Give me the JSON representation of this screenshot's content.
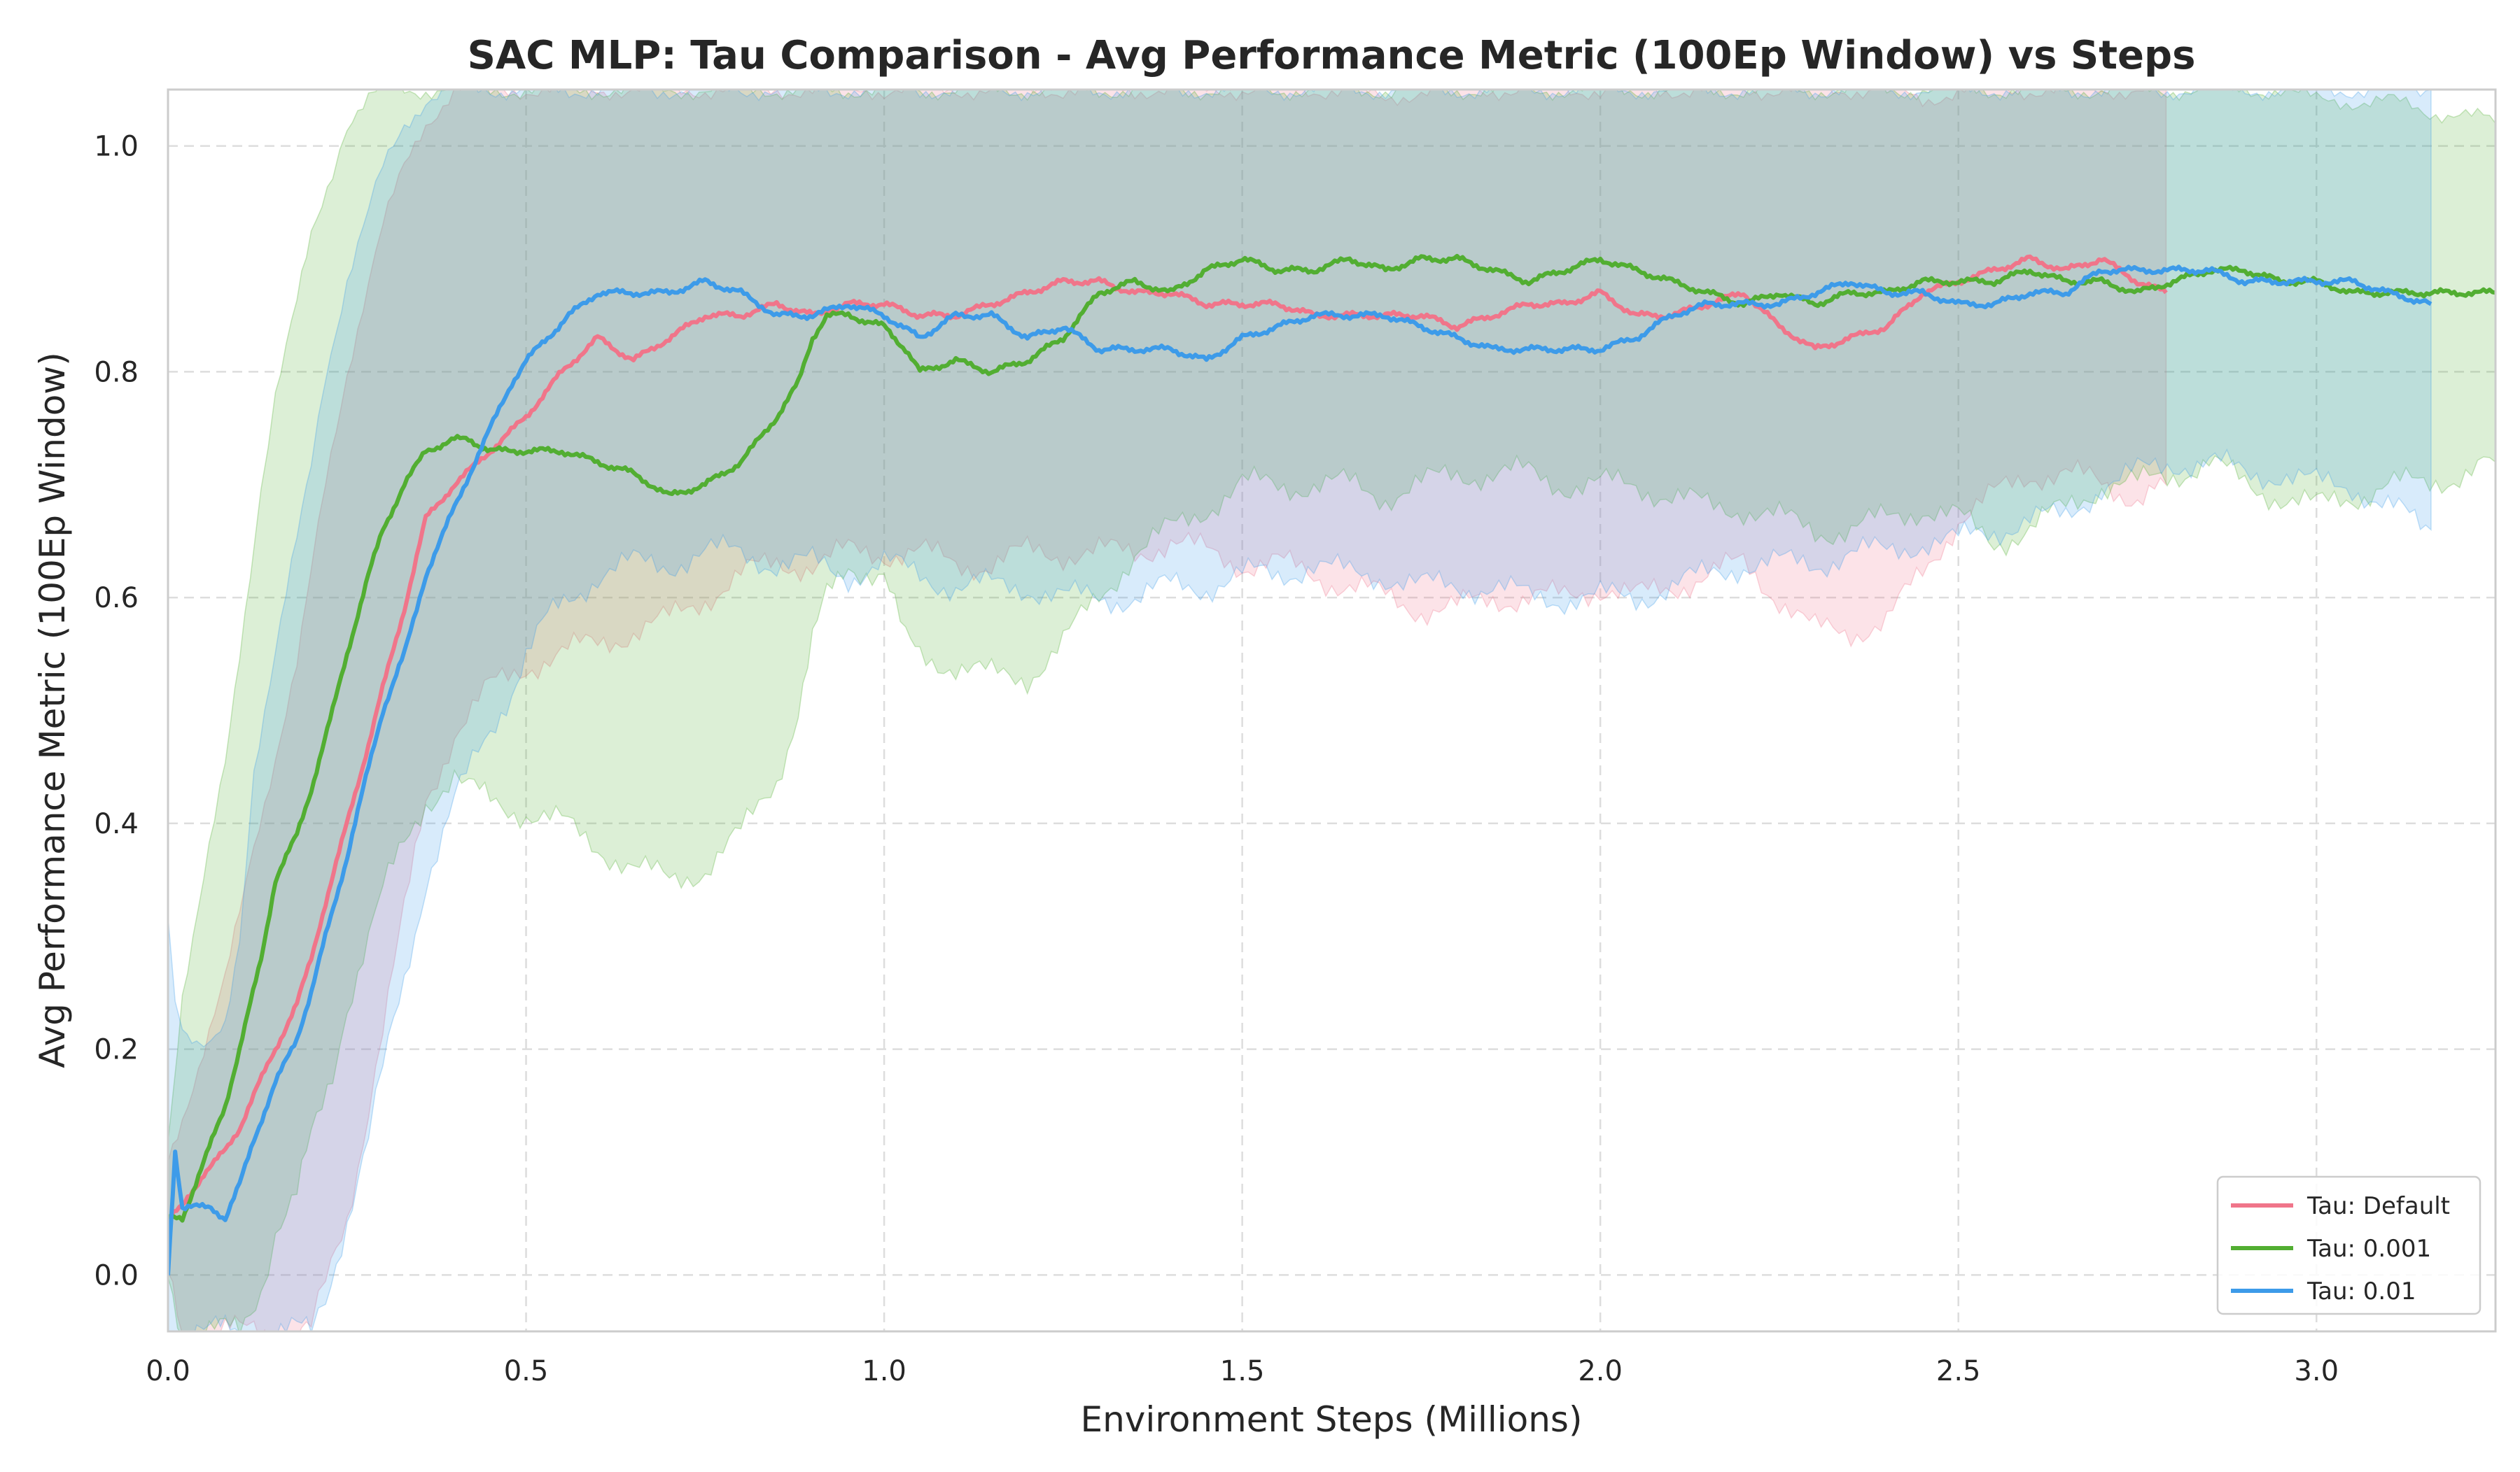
{
  "chart_data": {
    "type": "line",
    "title": "SAC MLP: Tau Comparison - Avg Performance Metric (100Ep Window) vs Steps",
    "xlabel": "Environment Steps (Millions)",
    "ylabel": "Avg Performance Metric (100Ep Window)",
    "xlim": [
      0.0,
      3.25
    ],
    "ylim": [
      -0.05,
      1.05
    ],
    "xticks": [
      "0.0",
      "0.5",
      "1.0",
      "1.5",
      "2.0",
      "2.5",
      "3.0"
    ],
    "yticks": [
      "0.0",
      "0.2",
      "0.4",
      "0.6",
      "0.8",
      "1.0"
    ],
    "grid": true,
    "legend_position": "bottom-right",
    "series": [
      {
        "name": "Tau: Default",
        "color": "#f0758a",
        "x": [
          0.0,
          0.02,
          0.05,
          0.08,
          0.1,
          0.12,
          0.15,
          0.18,
          0.2,
          0.22,
          0.25,
          0.28,
          0.3,
          0.33,
          0.36,
          0.4,
          0.45,
          0.5,
          0.55,
          0.6,
          0.65,
          0.7,
          0.75,
          0.8,
          0.85,
          0.9,
          0.95,
          1.0,
          1.05,
          1.1,
          1.15,
          1.2,
          1.25,
          1.3,
          1.35,
          1.4,
          1.45,
          1.5,
          1.55,
          1.6,
          1.65,
          1.7,
          1.75,
          1.8,
          1.85,
          1.9,
          1.95,
          2.0,
          2.05,
          2.1,
          2.15,
          2.2,
          2.25,
          2.3,
          2.35,
          2.4,
          2.45,
          2.5,
          2.55,
          2.6,
          2.65,
          2.7,
          2.75,
          2.79
        ],
        "y": [
          0.05,
          0.06,
          0.09,
          0.11,
          0.13,
          0.16,
          0.2,
          0.24,
          0.28,
          0.33,
          0.4,
          0.47,
          0.52,
          0.59,
          0.67,
          0.7,
          0.73,
          0.76,
          0.8,
          0.83,
          0.81,
          0.83,
          0.85,
          0.85,
          0.86,
          0.85,
          0.86,
          0.86,
          0.85,
          0.85,
          0.86,
          0.87,
          0.88,
          0.88,
          0.87,
          0.87,
          0.86,
          0.86,
          0.86,
          0.85,
          0.85,
          0.85,
          0.85,
          0.84,
          0.85,
          0.86,
          0.86,
          0.87,
          0.85,
          0.85,
          0.86,
          0.87,
          0.84,
          0.82,
          0.83,
          0.84,
          0.87,
          0.88,
          0.89,
          0.9,
          0.89,
          0.9,
          0.88,
          0.87
        ],
        "lower": [
          0.0,
          -0.05,
          -0.05,
          -0.05,
          -0.05,
          -0.05,
          -0.05,
          -0.05,
          -0.05,
          -0.01,
          0.05,
          0.15,
          0.22,
          0.32,
          0.42,
          0.48,
          0.52,
          0.54,
          0.55,
          0.56,
          0.57,
          0.58,
          0.6,
          0.62,
          0.63,
          0.63,
          0.64,
          0.64,
          0.64,
          0.63,
          0.63,
          0.64,
          0.64,
          0.64,
          0.64,
          0.65,
          0.64,
          0.63,
          0.63,
          0.62,
          0.61,
          0.6,
          0.59,
          0.59,
          0.6,
          0.6,
          0.6,
          0.61,
          0.6,
          0.61,
          0.62,
          0.63,
          0.6,
          0.57,
          0.57,
          0.58,
          0.62,
          0.67,
          0.69,
          0.71,
          0.71,
          0.7,
          0.69,
          0.7
        ],
        "upper": [
          0.1,
          0.14,
          0.2,
          0.26,
          0.32,
          0.38,
          0.46,
          0.54,
          0.62,
          0.7,
          0.8,
          0.88,
          0.93,
          0.98,
          1.02,
          1.05,
          1.05,
          1.05,
          1.05,
          1.05,
          1.05,
          1.05,
          1.05,
          1.05,
          1.05,
          1.05,
          1.05,
          1.05,
          1.05,
          1.05,
          1.05,
          1.05,
          1.05,
          1.05,
          1.05,
          1.05,
          1.05,
          1.05,
          1.05,
          1.05,
          1.05,
          1.04,
          1.05,
          1.05,
          1.05,
          1.05,
          1.05,
          1.05,
          1.05,
          1.05,
          1.05,
          1.05,
          1.05,
          1.05,
          1.05,
          1.05,
          1.04,
          1.05,
          1.05,
          1.05,
          1.05,
          1.05,
          1.05,
          1.05
        ]
      },
      {
        "name": "Tau: 0.001",
        "color": "#52ae32",
        "x": [
          0.0,
          0.02,
          0.05,
          0.08,
          0.1,
          0.13,
          0.15,
          0.18,
          0.2,
          0.23,
          0.25,
          0.28,
          0.3,
          0.33,
          0.36,
          0.4,
          0.42,
          0.45,
          0.5,
          0.55,
          0.6,
          0.65,
          0.7,
          0.75,
          0.8,
          0.85,
          0.88,
          0.9,
          0.92,
          0.95,
          1.0,
          1.03,
          1.05,
          1.1,
          1.15,
          1.2,
          1.25,
          1.3,
          1.35,
          1.4,
          1.45,
          1.5,
          1.55,
          1.6,
          1.65,
          1.7,
          1.75,
          1.8,
          1.85,
          1.9,
          1.95,
          2.0,
          2.05,
          2.1,
          2.15,
          2.2,
          2.25,
          2.3,
          2.35,
          2.4,
          2.45,
          2.5,
          2.55,
          2.6,
          2.65,
          2.7,
          2.75,
          2.8,
          2.85,
          2.9,
          2.95,
          3.0,
          3.05,
          3.1,
          3.15,
          3.2,
          3.25
        ],
        "y": [
          0.05,
          0.05,
          0.1,
          0.15,
          0.2,
          0.28,
          0.35,
          0.39,
          0.43,
          0.5,
          0.55,
          0.62,
          0.66,
          0.7,
          0.73,
          0.74,
          0.74,
          0.73,
          0.73,
          0.73,
          0.72,
          0.71,
          0.69,
          0.7,
          0.72,
          0.76,
          0.79,
          0.83,
          0.85,
          0.85,
          0.84,
          0.82,
          0.8,
          0.81,
          0.8,
          0.81,
          0.83,
          0.87,
          0.88,
          0.87,
          0.89,
          0.9,
          0.89,
          0.89,
          0.9,
          0.89,
          0.9,
          0.9,
          0.89,
          0.88,
          0.89,
          0.9,
          0.89,
          0.88,
          0.87,
          0.86,
          0.87,
          0.86,
          0.87,
          0.87,
          0.88,
          0.88,
          0.88,
          0.89,
          0.88,
          0.88,
          0.87,
          0.88,
          0.89,
          0.89,
          0.88,
          0.88,
          0.87,
          0.87,
          0.87,
          0.87,
          0.87
        ],
        "lower": [
          0.0,
          -0.05,
          -0.05,
          -0.05,
          -0.05,
          -0.01,
          0.04,
          0.07,
          0.12,
          0.18,
          0.24,
          0.3,
          0.34,
          0.38,
          0.42,
          0.44,
          0.43,
          0.42,
          0.41,
          0.4,
          0.38,
          0.36,
          0.35,
          0.36,
          0.39,
          0.44,
          0.5,
          0.56,
          0.6,
          0.63,
          0.62,
          0.56,
          0.55,
          0.54,
          0.53,
          0.53,
          0.56,
          0.6,
          0.64,
          0.66,
          0.68,
          0.7,
          0.7,
          0.7,
          0.7,
          0.69,
          0.7,
          0.71,
          0.71,
          0.71,
          0.7,
          0.7,
          0.7,
          0.69,
          0.68,
          0.68,
          0.67,
          0.66,
          0.66,
          0.67,
          0.68,
          0.67,
          0.65,
          0.66,
          0.68,
          0.7,
          0.7,
          0.71,
          0.72,
          0.7,
          0.69,
          0.68,
          0.69,
          0.7,
          0.7,
          0.71,
          0.72
        ],
        "upper": [
          0.12,
          0.25,
          0.35,
          0.45,
          0.55,
          0.7,
          0.78,
          0.86,
          0.92,
          0.98,
          1.02,
          1.04,
          1.05,
          1.05,
          1.05,
          1.05,
          1.05,
          1.05,
          1.05,
          1.05,
          1.05,
          1.05,
          1.05,
          1.05,
          1.05,
          1.05,
          1.05,
          1.05,
          1.05,
          1.05,
          1.05,
          1.05,
          1.05,
          1.05,
          1.05,
          1.05,
          1.05,
          1.05,
          1.05,
          1.05,
          1.05,
          1.05,
          1.05,
          1.05,
          1.05,
          1.05,
          1.05,
          1.05,
          1.05,
          1.05,
          1.05,
          1.05,
          1.05,
          1.05,
          1.05,
          1.05,
          1.05,
          1.05,
          1.05,
          1.05,
          1.05,
          1.05,
          1.05,
          1.05,
          1.05,
          1.05,
          1.05,
          1.05,
          1.05,
          1.05,
          1.05,
          1.04,
          1.04,
          1.04,
          1.03,
          1.03,
          1.02
        ]
      },
      {
        "name": "Tau: 0.01",
        "color": "#3d9be9",
        "x": [
          0.0,
          0.01,
          0.02,
          0.04,
          0.06,
          0.08,
          0.1,
          0.12,
          0.15,
          0.18,
          0.2,
          0.22,
          0.25,
          0.28,
          0.3,
          0.33,
          0.36,
          0.4,
          0.45,
          0.48,
          0.5,
          0.53,
          0.56,
          0.6,
          0.65,
          0.7,
          0.75,
          0.8,
          0.85,
          0.9,
          0.95,
          1.0,
          1.05,
          1.1,
          1.15,
          1.2,
          1.25,
          1.3,
          1.35,
          1.4,
          1.45,
          1.5,
          1.55,
          1.6,
          1.65,
          1.7,
          1.75,
          1.8,
          1.85,
          1.9,
          1.95,
          2.0,
          2.05,
          2.1,
          2.15,
          2.2,
          2.25,
          2.3,
          2.35,
          2.4,
          2.45,
          2.5,
          2.55,
          2.6,
          2.65,
          2.7,
          2.75,
          2.8,
          2.85,
          2.9,
          2.95,
          3.0,
          3.05,
          3.1,
          3.16
        ],
        "y": [
          0.0,
          0.11,
          0.06,
          0.06,
          0.06,
          0.05,
          0.08,
          0.12,
          0.17,
          0.21,
          0.25,
          0.3,
          0.37,
          0.45,
          0.5,
          0.55,
          0.62,
          0.68,
          0.75,
          0.79,
          0.81,
          0.83,
          0.85,
          0.87,
          0.87,
          0.87,
          0.88,
          0.87,
          0.85,
          0.85,
          0.86,
          0.85,
          0.83,
          0.85,
          0.85,
          0.83,
          0.84,
          0.82,
          0.82,
          0.82,
          0.81,
          0.83,
          0.84,
          0.85,
          0.85,
          0.85,
          0.84,
          0.83,
          0.82,
          0.82,
          0.82,
          0.82,
          0.83,
          0.85,
          0.86,
          0.86,
          0.86,
          0.87,
          0.88,
          0.87,
          0.87,
          0.86,
          0.86,
          0.87,
          0.87,
          0.89,
          0.89,
          0.89,
          0.89,
          0.88,
          0.88,
          0.88,
          0.88,
          0.87,
          0.86
        ],
        "lower": [
          -0.05,
          -0.05,
          -0.05,
          -0.05,
          -0.05,
          -0.05,
          -0.05,
          -0.05,
          -0.05,
          -0.05,
          -0.05,
          -0.02,
          0.05,
          0.12,
          0.18,
          0.26,
          0.35,
          0.42,
          0.48,
          0.52,
          0.55,
          0.58,
          0.6,
          0.62,
          0.63,
          0.63,
          0.64,
          0.64,
          0.63,
          0.63,
          0.62,
          0.63,
          0.62,
          0.61,
          0.61,
          0.61,
          0.6,
          0.6,
          0.6,
          0.61,
          0.61,
          0.62,
          0.62,
          0.63,
          0.62,
          0.62,
          0.61,
          0.61,
          0.61,
          0.6,
          0.6,
          0.6,
          0.6,
          0.61,
          0.62,
          0.63,
          0.63,
          0.63,
          0.64,
          0.64,
          0.65,
          0.65,
          0.66,
          0.67,
          0.67,
          0.7,
          0.71,
          0.72,
          0.72,
          0.71,
          0.71,
          0.7,
          0.7,
          0.68,
          0.66
        ],
        "upper": [
          0.32,
          0.25,
          0.22,
          0.2,
          0.2,
          0.22,
          0.3,
          0.45,
          0.55,
          0.65,
          0.72,
          0.8,
          0.88,
          0.94,
          0.98,
          1.02,
          1.04,
          1.05,
          1.05,
          1.05,
          1.05,
          1.05,
          1.05,
          1.05,
          1.05,
          1.05,
          1.05,
          1.05,
          1.05,
          1.05,
          1.05,
          1.05,
          1.05,
          1.05,
          1.05,
          1.05,
          1.05,
          1.05,
          1.05,
          1.05,
          1.05,
          1.05,
          1.05,
          1.05,
          1.05,
          1.05,
          1.05,
          1.05,
          1.05,
          1.05,
          1.05,
          1.05,
          1.05,
          1.05,
          1.05,
          1.05,
          1.05,
          1.05,
          1.05,
          1.05,
          1.05,
          1.05,
          1.05,
          1.05,
          1.05,
          1.05,
          1.05,
          1.05,
          1.05,
          1.05,
          1.05,
          1.05,
          1.05,
          1.05,
          1.05
        ]
      }
    ]
  }
}
